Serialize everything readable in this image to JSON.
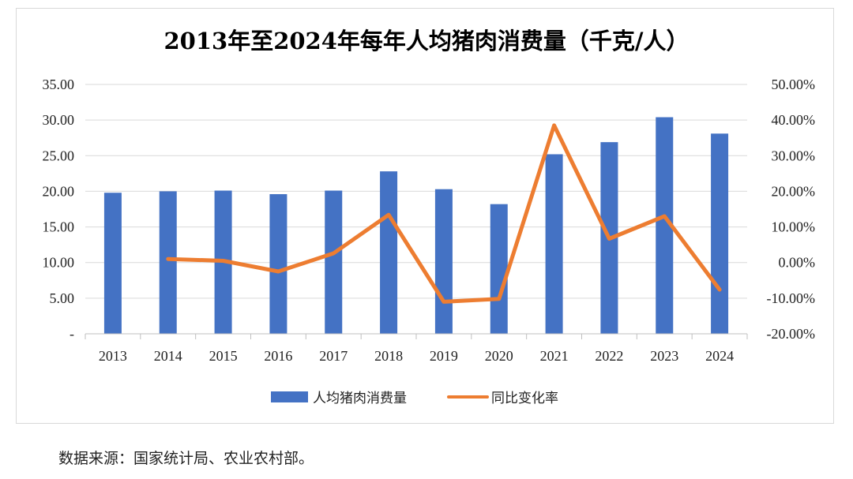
{
  "source_note": "数据来源：国家统计局、农业农村部。",
  "chart_data": {
    "type": "bar",
    "title": "2013年至2024年每年人均猪肉消费量（千克/人）",
    "categories": [
      "2013",
      "2014",
      "2015",
      "2016",
      "2017",
      "2018",
      "2019",
      "2020",
      "2021",
      "2022",
      "2023",
      "2024"
    ],
    "series": [
      {
        "name": "人均猪肉消费量",
        "type": "bar",
        "axis": "left",
        "color": "#4472C4",
        "values": [
          19.8,
          20.0,
          20.1,
          19.6,
          20.1,
          22.8,
          20.3,
          18.2,
          25.2,
          26.9,
          30.4,
          28.1
        ]
      },
      {
        "name": "同比变化率",
        "type": "line",
        "axis": "right",
        "color": "#ED7D31",
        "values": [
          null,
          1.0,
          0.5,
          -2.5,
          2.6,
          13.4,
          -11.0,
          -10.2,
          38.5,
          6.7,
          13.0,
          -7.6
        ]
      }
    ],
    "y_left": {
      "ylim": [
        0,
        35
      ],
      "ticks": [
        0,
        5,
        10,
        15,
        20,
        25,
        30,
        35
      ],
      "tick_labels": [
        "-",
        "5.00",
        "10.00",
        "15.00",
        "20.00",
        "25.00",
        "30.00",
        "35.00"
      ]
    },
    "y_right": {
      "ylim": [
        -20,
        50
      ],
      "ticks": [
        -20,
        -10,
        0,
        10,
        20,
        30,
        40,
        50
      ],
      "tick_labels": [
        "-20.00%",
        "-10.00%",
        "0.00%",
        "10.00%",
        "20.00%",
        "30.00%",
        "40.00%",
        "50.00%"
      ]
    },
    "gridlines": true,
    "legend_position": "bottom"
  }
}
